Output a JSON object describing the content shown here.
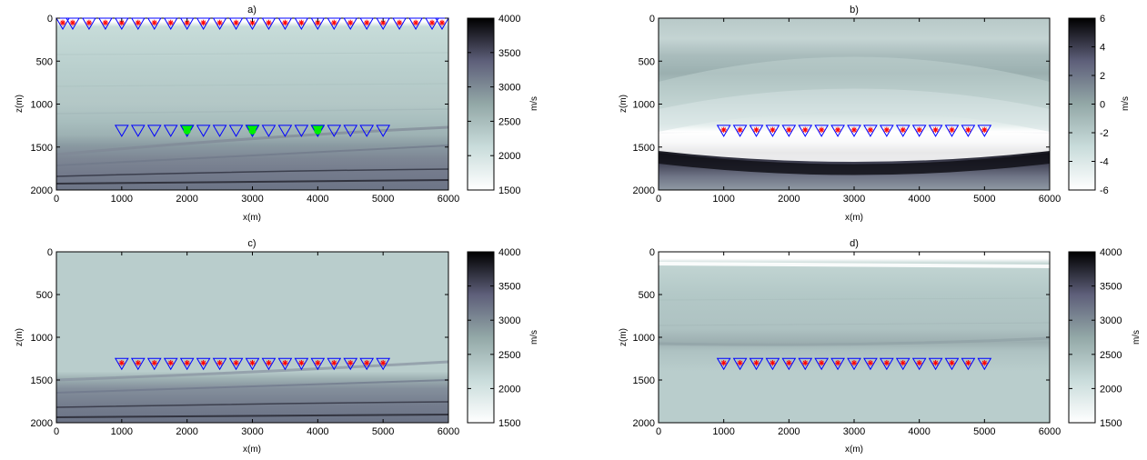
{
  "chart_data": [
    {
      "type": "heatmap",
      "panel": "a",
      "title": "a)",
      "xlabel": "x(m)",
      "ylabel": "z(m)",
      "xlim": [
        0,
        6000
      ],
      "ylim": [
        2000,
        0
      ],
      "xticks": [
        0,
        1000,
        2000,
        3000,
        4000,
        5000,
        6000
      ],
      "yticks": [
        0,
        500,
        1000,
        1500,
        2000
      ],
      "colorbar": {
        "label": "m/s",
        "range": [
          1500,
          4000
        ],
        "ticks": [
          1500,
          2000,
          2500,
          3000,
          3500,
          4000
        ]
      },
      "field": "true_velocity",
      "markers": [
        {
          "kind": "receiver-source",
          "z": 0,
          "x": [
            0,
            250,
            500,
            750,
            1000,
            1250,
            1500,
            1750,
            2000,
            2250,
            2500,
            2750,
            3000,
            3250,
            3500,
            3750,
            4000,
            4250,
            4500,
            4750,
            5000,
            5250,
            5500,
            5750,
            6000
          ]
        },
        {
          "kind": "receiver",
          "z": 1300,
          "x": [
            1000,
            1250,
            1500,
            1750,
            2000,
            2250,
            2500,
            2750,
            3000,
            3250,
            3500,
            3750,
            4000,
            4250,
            4500,
            4750,
            5000
          ]
        },
        {
          "kind": "filled-source",
          "z": 1300,
          "x": [
            2000,
            3000,
            4000
          ]
        }
      ]
    },
    {
      "type": "heatmap",
      "panel": "b",
      "title": "b)",
      "xlabel": "x(m)",
      "ylabel": "z(m)",
      "xlim": [
        0,
        6000
      ],
      "ylim": [
        2000,
        0
      ],
      "xticks": [
        0,
        1000,
        2000,
        3000,
        4000,
        5000,
        6000
      ],
      "yticks": [
        0,
        500,
        1000,
        1500,
        2000
      ],
      "colorbar": {
        "label": "m/s",
        "range": [
          -6,
          6
        ],
        "ticks": [
          -6,
          -4,
          -2,
          0,
          2,
          4,
          6
        ]
      },
      "field": "velocity_perturbation",
      "markers": [
        {
          "kind": "receiver-source",
          "z": 1300,
          "x": [
            1000,
            1250,
            1500,
            1750,
            2000,
            2250,
            2500,
            2750,
            3000,
            3250,
            3500,
            3750,
            4000,
            4250,
            4500,
            4750,
            5000
          ]
        }
      ]
    },
    {
      "type": "heatmap",
      "panel": "c",
      "title": "c)",
      "xlabel": "x(m)",
      "ylabel": "z(m)",
      "xlim": [
        0,
        6000
      ],
      "ylim": [
        2000,
        0
      ],
      "xticks": [
        0,
        1000,
        2000,
        3000,
        4000,
        5000,
        6000
      ],
      "yticks": [
        0,
        500,
        1000,
        1500,
        2000
      ],
      "colorbar": {
        "label": "m/s",
        "range": [
          1500,
          4000
        ],
        "ticks": [
          1500,
          2000,
          2500,
          3000,
          3500,
          4000
        ]
      },
      "field": "upper_smooth_velocity",
      "markers": [
        {
          "kind": "receiver-source",
          "z": 1300,
          "x": [
            1000,
            1250,
            1500,
            1750,
            2000,
            2250,
            2500,
            2750,
            3000,
            3250,
            3500,
            3750,
            4000,
            4250,
            4500,
            4750,
            5000
          ]
        }
      ]
    },
    {
      "type": "heatmap",
      "panel": "d",
      "title": "d)",
      "xlabel": "x(m)",
      "ylabel": "z(m)",
      "xlim": [
        0,
        6000
      ],
      "ylim": [
        2000,
        0
      ],
      "xticks": [
        0,
        1000,
        2000,
        3000,
        4000,
        5000,
        6000
      ],
      "yticks": [
        0,
        500,
        1000,
        1500,
        2000
      ],
      "colorbar": {
        "label": "m/s",
        "range": [
          1500,
          4000
        ],
        "ticks": [
          1500,
          2000,
          2500,
          3000,
          3500,
          4000
        ]
      },
      "field": "upper_layered_velocity",
      "markers": [
        {
          "kind": "receiver-source",
          "z": 1300,
          "x": [
            1000,
            1250,
            1500,
            1750,
            2000,
            2250,
            2500,
            2750,
            3000,
            3250,
            3500,
            3750,
            4000,
            4250,
            4500,
            4750,
            5000
          ]
        }
      ]
    }
  ],
  "colors": {
    "receiver": "#0000ff",
    "source_star": "#ff0000",
    "filled_source": "#00ee00",
    "colormap_low": "#ffffff",
    "colormap_high": "#000000"
  }
}
